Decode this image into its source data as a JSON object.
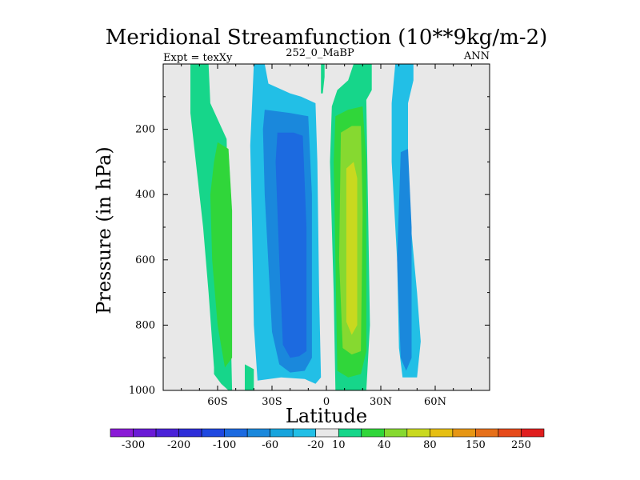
{
  "chart_data": {
    "type": "contour",
    "title": "Meridional Streamfunction (10**9kg/m-2)",
    "subtitle_left": "Expt = texXy",
    "subtitle_center": "252_0_MaBP",
    "subtitle_right": "ANN",
    "xlabel": "Latitude",
    "ylabel": "Pressure (in hPa)",
    "xlim": [
      -90,
      90
    ],
    "ylim": [
      1000,
      0
    ],
    "x_ticks": [
      {
        "value": -60,
        "label": "60S"
      },
      {
        "value": -30,
        "label": "30S"
      },
      {
        "value": 0,
        "label": "0"
      },
      {
        "value": 30,
        "label": "30N"
      },
      {
        "value": 60,
        "label": "60N"
      }
    ],
    "y_ticks": [
      {
        "value": 200,
        "label": "200"
      },
      {
        "value": 400,
        "label": "400"
      },
      {
        "value": 600,
        "label": "600"
      },
      {
        "value": 800,
        "label": "800"
      },
      {
        "value": 1000,
        "label": "1000"
      }
    ],
    "colorbar": {
      "colors": [
        "#8a1ad6",
        "#6a1ad6",
        "#4a22d8",
        "#2e2ed9",
        "#1f48e0",
        "#1c6ae0",
        "#1a88dc",
        "#17a4dd",
        "#22bfe6",
        "#e8e8e8",
        "#16d68a",
        "#30d63a",
        "#86d930",
        "#c9d91f",
        "#e6bf13",
        "#e69614",
        "#e6701a",
        "#e64a1a",
        "#e01e1e"
      ],
      "labels": [
        "-300",
        "-200",
        "-100",
        "-60",
        "-20",
        "10",
        "40",
        "80",
        "150",
        "250"
      ]
    },
    "regions": [
      {
        "name": "sh-polar-cell",
        "level": 10,
        "points": [
          [
            -75,
            0
          ],
          [
            -65,
            0
          ],
          [
            -64,
            120
          ],
          [
            -55,
            230
          ],
          [
            -52,
            1000
          ],
          [
            -54,
            1000
          ],
          [
            -58,
            980
          ],
          [
            -62,
            950
          ],
          [
            -62,
            930
          ],
          [
            -65,
            700
          ],
          [
            -68,
            500
          ],
          [
            -72,
            300
          ],
          [
            -75,
            150
          ]
        ]
      },
      {
        "name": "sh-polar-core",
        "level": 40,
        "points": [
          [
            -60,
            240
          ],
          [
            -54,
            260
          ],
          [
            -52,
            450
          ],
          [
            -52,
            900
          ],
          [
            -56,
            930
          ],
          [
            -60,
            800
          ],
          [
            -63,
            600
          ],
          [
            -64,
            400
          ],
          [
            -62,
            300
          ]
        ]
      },
      {
        "name": "sh-ferrel-cell",
        "level": -20,
        "points": [
          [
            -40,
            0
          ],
          [
            -34,
            0
          ],
          [
            -32,
            60
          ],
          [
            -20,
            90
          ],
          [
            -14,
            100
          ],
          [
            -6,
            120
          ],
          [
            -5,
            300
          ],
          [
            -4,
            700
          ],
          [
            -3,
            960
          ],
          [
            -6,
            980
          ],
          [
            -10,
            970
          ],
          [
            -12,
            965
          ],
          [
            -25,
            960
          ],
          [
            -38,
            970
          ],
          [
            -40,
            800
          ],
          [
            -41,
            500
          ],
          [
            -42,
            250
          ]
        ]
      },
      {
        "name": "sh-ferrel-core",
        "level": -60,
        "points": [
          [
            -34,
            140
          ],
          [
            -20,
            150
          ],
          [
            -10,
            160
          ],
          [
            -8,
            400
          ],
          [
            -8,
            900
          ],
          [
            -12,
            940
          ],
          [
            -20,
            945
          ],
          [
            -26,
            920
          ],
          [
            -30,
            820
          ],
          [
            -34,
            400
          ],
          [
            -35,
            200
          ]
        ]
      },
      {
        "name": "sh-ferrel-inner",
        "level": -100,
        "points": [
          [
            -27,
            210
          ],
          [
            -18,
            210
          ],
          [
            -13,
            220
          ],
          [
            -11,
            500
          ],
          [
            -11,
            880
          ],
          [
            -15,
            895
          ],
          [
            -20,
            900
          ],
          [
            -24,
            860
          ],
          [
            -26,
            600
          ],
          [
            -28,
            300
          ]
        ]
      },
      {
        "name": "eq-filament",
        "level": 10,
        "points": [
          [
            -3,
            0
          ],
          [
            -1,
            0
          ],
          [
            -1,
            40
          ],
          [
            -2,
            90
          ],
          [
            -3,
            90
          ],
          [
            -3,
            40
          ]
        ]
      },
      {
        "name": "nh-hadley-cell",
        "level": 10,
        "points": [
          [
            3,
            130
          ],
          [
            6,
            80
          ],
          [
            12,
            50
          ],
          [
            15,
            0
          ],
          [
            25,
            0
          ],
          [
            25,
            80
          ],
          [
            22,
            110
          ],
          [
            24,
            800
          ],
          [
            22,
            1000
          ],
          [
            5,
            1000
          ],
          [
            4,
            700
          ],
          [
            2,
            300
          ]
        ]
      },
      {
        "name": "nh-hadley-40",
        "level": 40,
        "points": [
          [
            5,
            160
          ],
          [
            12,
            140
          ],
          [
            20,
            130
          ],
          [
            22,
            300
          ],
          [
            22,
            880
          ],
          [
            19,
            950
          ],
          [
            12,
            960
          ],
          [
            6,
            940
          ],
          [
            5,
            600
          ],
          [
            4,
            300
          ]
        ]
      },
      {
        "name": "nh-hadley-80",
        "level": 80,
        "points": [
          [
            8,
            210
          ],
          [
            14,
            190
          ],
          [
            19,
            190
          ],
          [
            20,
            450
          ],
          [
            19,
            880
          ],
          [
            14,
            890
          ],
          [
            9,
            870
          ],
          [
            7,
            600
          ]
        ]
      },
      {
        "name": "nh-hadley-150",
        "level": 150,
        "points": [
          [
            11,
            320
          ],
          [
            15,
            300
          ],
          [
            17,
            350
          ],
          [
            17,
            800
          ],
          [
            14,
            830
          ],
          [
            11,
            790
          ]
        ]
      },
      {
        "name": "nh-ferrel-cell",
        "level": -20,
        "points": [
          [
            38,
            0
          ],
          [
            48,
            0
          ],
          [
            48,
            50
          ],
          [
            45,
            120
          ],
          [
            45,
            400
          ],
          [
            50,
            700
          ],
          [
            52,
            850
          ],
          [
            50,
            960
          ],
          [
            42,
            960
          ],
          [
            40,
            870
          ],
          [
            39,
            600
          ],
          [
            36,
            300
          ],
          [
            36,
            120
          ]
        ]
      },
      {
        "name": "nh-ferrel-core",
        "level": -60,
        "points": [
          [
            41,
            270
          ],
          [
            45,
            260
          ],
          [
            47,
            500
          ],
          [
            47,
            900
          ],
          [
            44,
            940
          ],
          [
            41,
            900
          ],
          [
            39,
            600
          ]
        ]
      },
      {
        "name": "sh-gap-cell",
        "level": 10,
        "points": [
          [
            -45,
            920
          ],
          [
            -40,
            935
          ],
          [
            -40,
            1000
          ],
          [
            -45,
            1000
          ]
        ]
      }
    ]
  }
}
